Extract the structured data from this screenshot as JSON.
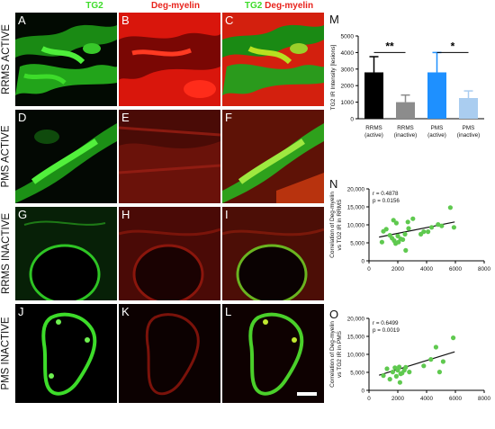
{
  "headers": {
    "col1": "TG2",
    "col2": "Deg-myelin",
    "col3_green": "TG2",
    "col3_red": "Deg-myelin"
  },
  "row_labels": [
    "RRMS ACTIVE",
    "PMS ACTIVE",
    "RRMS INACTIVE",
    "PMS INACTIVE"
  ],
  "panel_letters": [
    "A",
    "B",
    "C",
    "D",
    "E",
    "F",
    "G",
    "H",
    "I",
    "J",
    "K",
    "L"
  ],
  "figure_letters": {
    "bar": "M",
    "scatter1": "N",
    "scatter2": "O"
  },
  "colors": {
    "green": "#3ddc2a",
    "red": "#e8231c",
    "bar_black": "#000000",
    "bar_gray": "#8c8c8c",
    "bar_blue": "#1e90ff",
    "bar_lightblue": "#aacdf0",
    "point_green": "#5fc94f"
  },
  "chart_data": [
    {
      "type": "bar",
      "categories": [
        "RRMS (active)",
        "RRMS (inactive)",
        "PMS (active)",
        "PMS (inactive)"
      ],
      "category_lines": [
        [
          "RRMS",
          "(active)"
        ],
        [
          "RRMS",
          "(inactive)"
        ],
        [
          "PMS",
          "(active)"
        ],
        [
          "PMS",
          "(inactive)"
        ]
      ],
      "values": [
        2800,
        1000,
        2800,
        1250
      ],
      "errors": [
        950,
        430,
        1200,
        430
      ],
      "ylabel": "TG2 IR Intensity [lesions]",
      "ylim": [
        0,
        5000
      ],
      "yticks": [
        0,
        1000,
        2000,
        3000,
        4000,
        5000
      ],
      "significance": [
        "**",
        "*"
      ]
    },
    {
      "type": "scatter",
      "ylabel_lines": [
        "Correlation of Deg-myelin",
        "vs TG2 IR in RRMS"
      ],
      "annotation": [
        "r = 0.4878",
        "p = 0.0156"
      ],
      "xlim": [
        0,
        8000
      ],
      "ylim": [
        0,
        20000
      ],
      "xticks": [
        0,
        2000,
        4000,
        6000,
        8000
      ],
      "yticks": [
        0,
        5000,
        10000,
        15000,
        20000
      ],
      "ytick_labels": [
        "0",
        "5,000",
        "10,000",
        "15,000",
        "20,000"
      ],
      "points": [
        [
          900,
          5200
        ],
        [
          1000,
          8200
        ],
        [
          1200,
          8800
        ],
        [
          1450,
          7100
        ],
        [
          1600,
          6300
        ],
        [
          1700,
          11300
        ],
        [
          1750,
          5600
        ],
        [
          1850,
          4800
        ],
        [
          1900,
          10500
        ],
        [
          2000,
          6900
        ],
        [
          2050,
          5200
        ],
        [
          2200,
          6100
        ],
        [
          2350,
          5900
        ],
        [
          2500,
          7400
        ],
        [
          2550,
          2900
        ],
        [
          2700,
          10800
        ],
        [
          2750,
          9000
        ],
        [
          3050,
          11700
        ],
        [
          3600,
          7400
        ],
        [
          3800,
          8100
        ],
        [
          4100,
          8100
        ],
        [
          4350,
          9300
        ],
        [
          4800,
          10100
        ],
        [
          5050,
          9700
        ],
        [
          5650,
          14800
        ],
        [
          5900,
          9300
        ]
      ],
      "fit": [
        [
          700,
          6600
        ],
        [
          5950,
          10800
        ]
      ]
    },
    {
      "type": "scatter",
      "ylabel_lines": [
        "Correlation of Deg-myelin",
        "vs TG2 IR in PMS"
      ],
      "annotation": [
        "r = 0.6499",
        "p = 0.0019"
      ],
      "xlim": [
        0,
        8000
      ],
      "ylim": [
        0,
        20000
      ],
      "xticks": [
        0,
        2000,
        4000,
        6000,
        8000
      ],
      "yticks": [
        0,
        5000,
        10000,
        15000,
        20000
      ],
      "ytick_labels": [
        "0",
        "5,000",
        "10,000",
        "15,000",
        "20,000"
      ],
      "points": [
        [
          1000,
          4100
        ],
        [
          1250,
          6000
        ],
        [
          1450,
          3100
        ],
        [
          1650,
          5100
        ],
        [
          1800,
          6300
        ],
        [
          1900,
          3900
        ],
        [
          2000,
          5600
        ],
        [
          2100,
          6500
        ],
        [
          2150,
          2200
        ],
        [
          2200,
          4600
        ],
        [
          2300,
          4800
        ],
        [
          2450,
          5600
        ],
        [
          2550,
          6400
        ],
        [
          2800,
          5100
        ],
        [
          3800,
          6800
        ],
        [
          4300,
          8600
        ],
        [
          4650,
          12000
        ],
        [
          4900,
          5100
        ],
        [
          5150,
          8000
        ],
        [
          5850,
          14600
        ]
      ],
      "fit": [
        [
          700,
          4200
        ],
        [
          5950,
          10700
        ]
      ]
    }
  ]
}
